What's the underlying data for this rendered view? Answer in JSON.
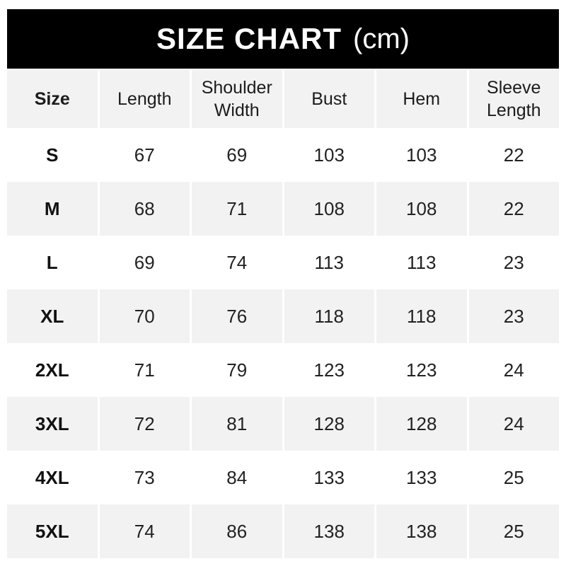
{
  "title": {
    "main": "SIZE CHART",
    "unit": "(cm)"
  },
  "chart_data": {
    "type": "table",
    "title": "SIZE CHART (cm)",
    "unit": "cm",
    "columns": [
      "Size",
      "Length",
      "Shoulder Width",
      "Bust",
      "Hem",
      "Sleeve Length"
    ],
    "rows": [
      {
        "size": "S",
        "values": [
          67,
          69,
          103,
          103,
          22
        ]
      },
      {
        "size": "M",
        "values": [
          68,
          71,
          108,
          108,
          22
        ]
      },
      {
        "size": "L",
        "values": [
          69,
          74,
          113,
          113,
          23
        ]
      },
      {
        "size": "XL",
        "values": [
          70,
          76,
          118,
          118,
          23
        ]
      },
      {
        "size": "2XL",
        "values": [
          71,
          79,
          123,
          123,
          24
        ]
      },
      {
        "size": "3XL",
        "values": [
          72,
          81,
          128,
          128,
          24
        ]
      },
      {
        "size": "4XL",
        "values": [
          73,
          84,
          133,
          133,
          25
        ]
      },
      {
        "size": "5XL",
        "values": [
          74,
          86,
          138,
          138,
          25
        ]
      }
    ]
  },
  "colors": {
    "title_bar_bg": "#000000",
    "title_text": "#ffffff",
    "row_alt_bg": "#f2f2f2",
    "row_bg": "#ffffff",
    "text": "#1c1c1c"
  }
}
